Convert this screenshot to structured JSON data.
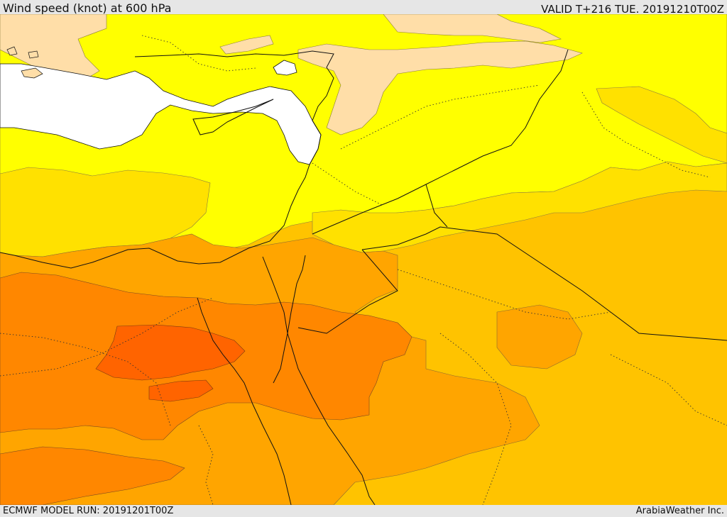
{
  "header": {
    "title": "Wind speed (knot) at 600 hPa",
    "valid": "VALID T+216 TUE. 20191210T00Z"
  },
  "footer": {
    "model_run": "ECMWF MODEL RUN: 20191201T00Z",
    "credit": "ArabiaWeather Inc."
  },
  "colors": {
    "sea_white": "#ffffff",
    "band_peach": "#ffdea8",
    "band_yellow": "#ffff00",
    "band_gold": "#ffe100",
    "band_amber": "#ffc300",
    "band_orange": "#ffa500",
    "band_dark_orange": "#ff8700",
    "band_red_orange": "#ff6400"
  }
}
